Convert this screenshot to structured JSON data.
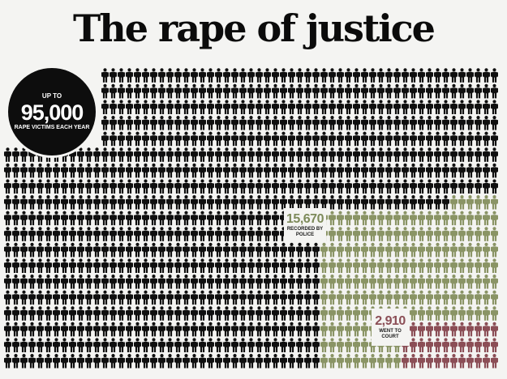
{
  "title": "The rape of justice",
  "colors": {
    "background": "#f4f4f2",
    "unreported": "#0f0f0f",
    "recorded_by_police": "#8a9465",
    "went_to_court": "#8b4e56"
  },
  "icon": "person-icon",
  "chart_data": {
    "type": "pictogram",
    "title": "The rape of justice",
    "annotations": [
      {
        "prefix": "UP TO",
        "value": "95,000",
        "label": "RAPE VICTIMS EACH YEAR"
      },
      {
        "value": "15,670",
        "label": "RECORDED BY POLICE"
      },
      {
        "value": "2,910",
        "label": "WENT TO COURT"
      }
    ],
    "series": [
      {
        "value": 95000,
        "color": "#0f0f0f"
      },
      {
        "value": 15670,
        "color": "#8a9465"
      },
      {
        "value": 2910,
        "color": "#8b4e56"
      }
    ]
  }
}
